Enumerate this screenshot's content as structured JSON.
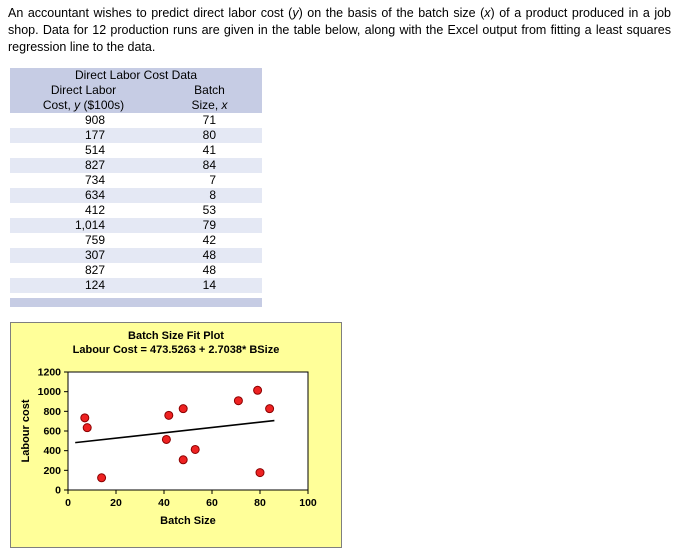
{
  "intro": {
    "parts": [
      {
        "text": "An accountant wishes to predict direct labor cost (",
        "italic": false
      },
      {
        "text": "y",
        "italic": true
      },
      {
        "text": ") on the basis of the batch size (",
        "italic": false
      },
      {
        "text": "x",
        "italic": true
      },
      {
        "text": ") of a product produced in a job shop. Data for 12 production runs are given in the table below, along with the Excel output from fitting a least squares regression line to the data.",
        "italic": false
      }
    ]
  },
  "table": {
    "title": "Direct Labor Cost Data",
    "col1_header": {
      "line1": "Direct Labor",
      "line2_pre": "Cost, ",
      "line2_var": "y",
      "line2_post": " ($100s)"
    },
    "col2_header": {
      "line1": "Batch",
      "line2_pre": "Size, ",
      "line2_var": "x"
    },
    "rows": [
      {
        "labor_cost": "908",
        "batch_size": "71"
      },
      {
        "labor_cost": "177",
        "batch_size": "80"
      },
      {
        "labor_cost": "514",
        "batch_size": "41"
      },
      {
        "labor_cost": "827",
        "batch_size": "84"
      },
      {
        "labor_cost": "734",
        "batch_size": "7"
      },
      {
        "labor_cost": "634",
        "batch_size": "8"
      },
      {
        "labor_cost": "412",
        "batch_size": "53"
      },
      {
        "labor_cost": "1,014",
        "batch_size": "79"
      },
      {
        "labor_cost": "759",
        "batch_size": "42"
      },
      {
        "labor_cost": "307",
        "batch_size": "48"
      },
      {
        "labor_cost": "827",
        "batch_size": "48"
      },
      {
        "labor_cost": "124",
        "batch_size": "14"
      }
    ],
    "colors": {
      "header_bg": "#c6cce4",
      "stripe_bg": "#e4e8f4"
    }
  },
  "chart_data": {
    "type": "scatter",
    "title": "Batch Size Fit Plot",
    "subtitle": "Labour Cost = 473.5263 + 2.7038* BSize",
    "xlabel": "Batch Size",
    "ylabel": "Labour cost",
    "xlim": [
      0,
      100
    ],
    "ylim": [
      0,
      1200
    ],
    "xticks": [
      0,
      20,
      40,
      60,
      80,
      100
    ],
    "yticks": [
      0,
      200,
      400,
      600,
      800,
      1000,
      1200
    ],
    "grid": false,
    "points": [
      {
        "x": 71,
        "y": 908
      },
      {
        "x": 80,
        "y": 177
      },
      {
        "x": 41,
        "y": 514
      },
      {
        "x": 84,
        "y": 827
      },
      {
        "x": 7,
        "y": 734
      },
      {
        "x": 8,
        "y": 634
      },
      {
        "x": 53,
        "y": 412
      },
      {
        "x": 79,
        "y": 1014
      },
      {
        "x": 42,
        "y": 759
      },
      {
        "x": 48,
        "y": 307
      },
      {
        "x": 48,
        "y": 827
      },
      {
        "x": 14,
        "y": 124
      }
    ],
    "fit_line": {
      "intercept": 473.5263,
      "slope": 2.7038,
      "x_start": 3,
      "x_end": 86
    },
    "colors": {
      "background": "#ffff99",
      "marker": "#ee2222",
      "marker_edge": "#8b0000",
      "line": "#000000"
    }
  }
}
